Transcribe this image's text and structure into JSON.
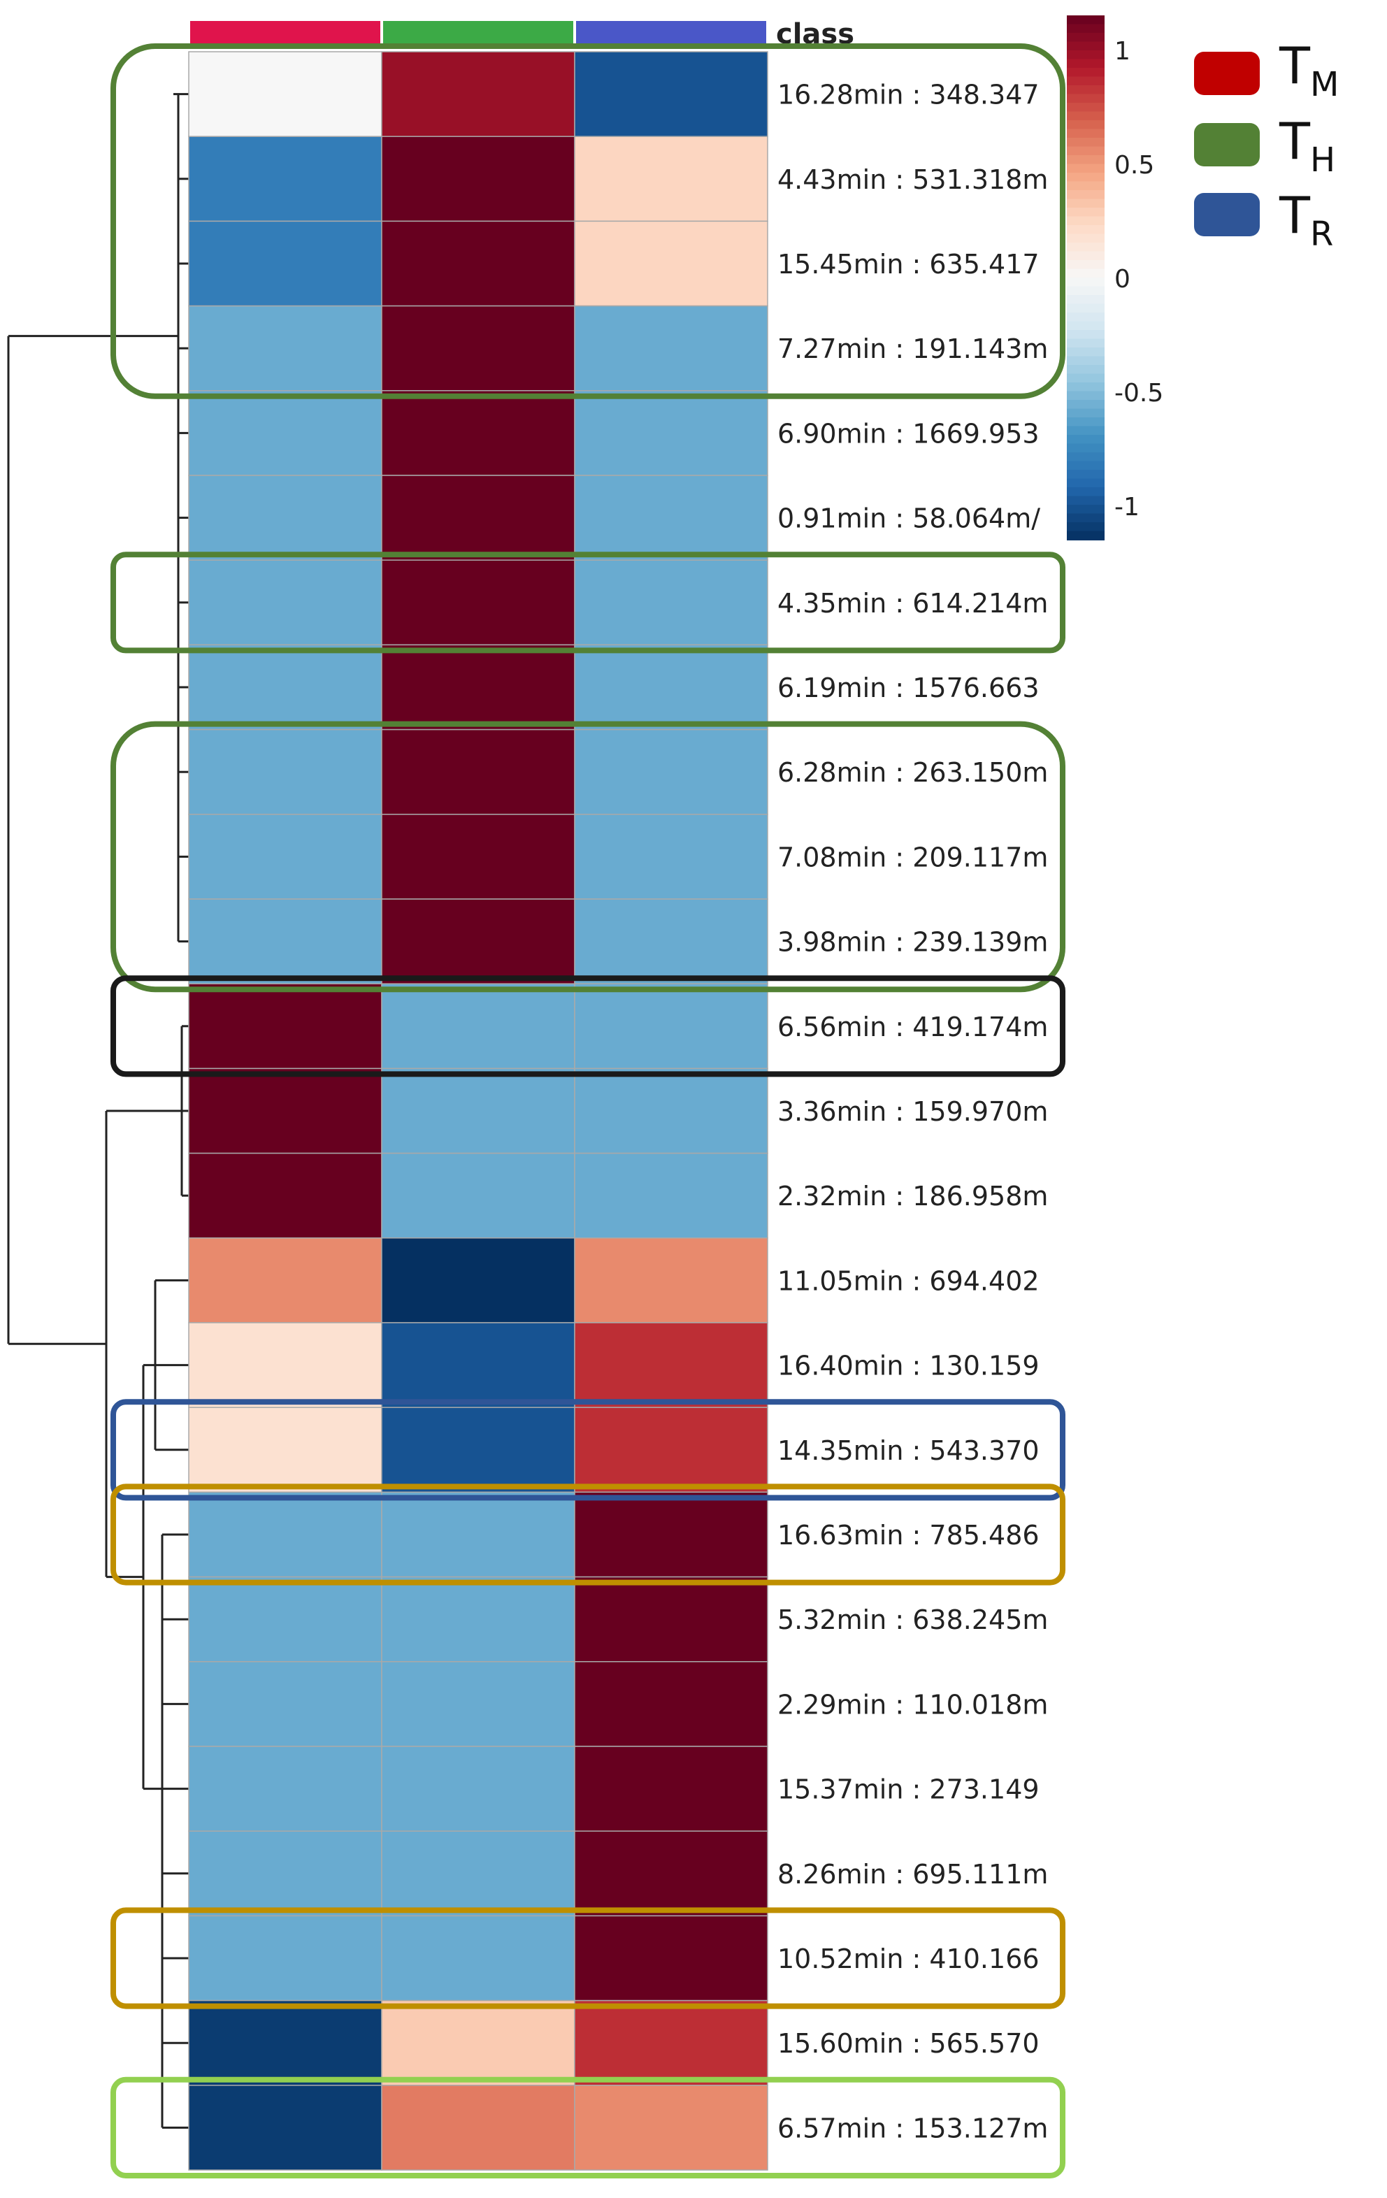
{
  "chart_data": {
    "type": "heatmap",
    "class_label": "class",
    "class_colors": [
      "#e0144c",
      "#3caa46",
      "#4a57c8"
    ],
    "columns": [
      "T_M",
      "T_H",
      "T_R"
    ],
    "rows": [
      "16.28min : 348.347",
      "4.43min : 531.318m",
      "15.45min : 635.417",
      "7.27min : 191.143m",
      "6.90min : 1669.953",
      "0.91min : 58.064m/",
      "4.35min : 614.214m",
      "6.19min : 1576.663",
      "6.28min : 263.150m",
      "7.08min : 209.117m",
      "3.98min : 239.139m",
      "6.56min : 419.174m",
      "3.36min : 159.970m",
      "2.32min : 186.958m",
      "11.05min : 694.402",
      "16.40min : 130.159",
      "14.35min : 543.370",
      "16.63min : 785.486",
      "5.32min : 638.245m",
      "2.29min : 110.018m",
      "15.37min : 273.149",
      "8.26min : 695.111m",
      "10.52min : 410.166",
      "15.60min : 565.570",
      "6.57min : 153.127m"
    ],
    "values": [
      [
        0.0,
        1.0,
        -1.0
      ],
      [
        -0.8,
        1.15,
        0.25
      ],
      [
        -0.8,
        1.15,
        0.25
      ],
      [
        -0.58,
        1.15,
        -0.58
      ],
      [
        -0.58,
        1.15,
        -0.58
      ],
      [
        -0.58,
        1.15,
        -0.58
      ],
      [
        -0.58,
        1.15,
        -0.58
      ],
      [
        -0.58,
        1.15,
        -0.58
      ],
      [
        -0.58,
        1.15,
        -0.58
      ],
      [
        -0.58,
        1.15,
        -0.58
      ],
      [
        -0.58,
        1.15,
        -0.58
      ],
      [
        1.15,
        -0.58,
        -0.58
      ],
      [
        1.15,
        -0.58,
        -0.58
      ],
      [
        1.15,
        -0.58,
        -0.58
      ],
      [
        0.55,
        -1.15,
        0.55
      ],
      [
        0.18,
        -1.0,
        0.85
      ],
      [
        0.18,
        -1.0,
        0.85
      ],
      [
        -0.58,
        -0.58,
        1.15
      ],
      [
        -0.58,
        -0.58,
        1.15
      ],
      [
        -0.58,
        -0.58,
        1.15
      ],
      [
        -0.58,
        -0.58,
        1.15
      ],
      [
        -0.58,
        -0.58,
        1.15
      ],
      [
        -0.58,
        -0.58,
        1.15
      ],
      [
        -1.1,
        0.3,
        0.85
      ],
      [
        -1.1,
        0.6,
        0.55
      ]
    ],
    "color_scale": {
      "min": -1.15,
      "max": 1.15,
      "ticks": [
        1,
        0.5,
        0,
        -0.5,
        -1
      ],
      "tick_labels": [
        "1",
        "0.5",
        "0",
        "-0.5",
        "-1"
      ],
      "stops": [
        "#053061",
        "#2166ac",
        "#4393c3",
        "#92c5de",
        "#d1e5f0",
        "#f7f7f7",
        "#fddbc7",
        "#f4a582",
        "#d6604d",
        "#b2182b",
        "#67001f"
      ]
    },
    "highlight_boxes": [
      {
        "first_row": 0,
        "last_row": 3,
        "color": "#538135"
      },
      {
        "first_row": 6,
        "last_row": 6,
        "color": "#538135"
      },
      {
        "first_row": 8,
        "last_row": 10,
        "color": "#538135"
      },
      {
        "first_row": 11,
        "last_row": 11,
        "color": "#1a1a1a"
      },
      {
        "first_row": 16,
        "last_row": 16,
        "color": "#2f5597"
      },
      {
        "first_row": 17,
        "last_row": 17,
        "color": "#bf8f00"
      },
      {
        "first_row": 22,
        "last_row": 22,
        "color": "#bf8f00"
      },
      {
        "first_row": 24,
        "last_row": 24,
        "color": "#92d050"
      }
    ],
    "legend": [
      {
        "main": "T",
        "sub": "M",
        "color": "#c00000"
      },
      {
        "main": "T",
        "sub": "H",
        "color": "#538135"
      },
      {
        "main": "T",
        "sub": "R",
        "color": "#2f5597"
      }
    ]
  }
}
